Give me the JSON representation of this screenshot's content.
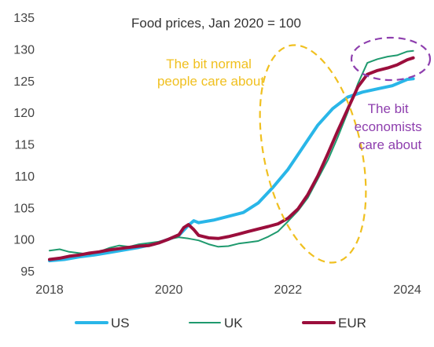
{
  "chart_data": {
    "type": "line",
    "title": "Food prices, Jan 2020 = 100",
    "xlabel": "",
    "ylabel": "",
    "xlim": [
      2018,
      2024.3
    ],
    "ylim": [
      95,
      135
    ],
    "x_ticks": [
      "2018",
      "2020",
      "2022",
      "2024"
    ],
    "y_ticks": [
      "95",
      "100",
      "105",
      "110",
      "115",
      "120",
      "125",
      "130",
      "135"
    ],
    "grid": false,
    "legend_position": "bottom",
    "series": [
      {
        "name": "US",
        "color": "#29B6E8",
        "x": [
          2018.0,
          2018.25,
          2018.5,
          2018.75,
          2019.0,
          2019.25,
          2019.5,
          2019.75,
          2020.0,
          2020.17,
          2020.33,
          2020.42,
          2020.5,
          2020.75,
          2021.0,
          2021.25,
          2021.5,
          2021.75,
          2022.0,
          2022.25,
          2022.5,
          2022.75,
          2023.0,
          2023.25,
          2023.5,
          2023.75,
          2024.0,
          2024.1
        ],
        "values": [
          96.6,
          96.8,
          97.2,
          97.5,
          97.9,
          98.3,
          98.7,
          99.2,
          100.0,
          100.6,
          102.2,
          102.9,
          102.6,
          103.0,
          103.6,
          104.2,
          105.7,
          108.2,
          111.0,
          114.5,
          118.0,
          120.6,
          122.4,
          123.2,
          123.7,
          124.2,
          125.2,
          125.3
        ]
      },
      {
        "name": "UK",
        "color": "#1F9A6E",
        "x": [
          2018.0,
          2018.17,
          2018.33,
          2018.5,
          2018.67,
          2018.83,
          2019.0,
          2019.17,
          2019.33,
          2019.5,
          2019.67,
          2019.83,
          2020.0,
          2020.17,
          2020.33,
          2020.5,
          2020.67,
          2020.83,
          2021.0,
          2021.17,
          2021.33,
          2021.5,
          2021.67,
          2021.83,
          2022.0,
          2022.17,
          2022.33,
          2022.5,
          2022.67,
          2022.83,
          2023.0,
          2023.17,
          2023.33,
          2023.5,
          2023.67,
          2023.83,
          2024.0,
          2024.1
        ],
        "values": [
          98.2,
          98.4,
          98.0,
          97.8,
          97.6,
          98.0,
          98.6,
          99.0,
          98.8,
          99.2,
          99.4,
          99.6,
          100.0,
          100.3,
          100.1,
          99.8,
          99.2,
          98.8,
          98.9,
          99.3,
          99.5,
          99.7,
          100.4,
          101.2,
          102.8,
          104.5,
          106.5,
          109.5,
          112.5,
          116.0,
          120.0,
          124.5,
          127.8,
          128.4,
          128.8,
          129.0,
          129.6,
          129.7
        ]
      },
      {
        "name": "EUR",
        "color": "#9B0E3C",
        "x": [
          2018.0,
          2018.17,
          2018.33,
          2018.5,
          2018.67,
          2018.83,
          2019.0,
          2019.17,
          2019.33,
          2019.5,
          2019.67,
          2019.83,
          2020.0,
          2020.17,
          2020.25,
          2020.33,
          2020.42,
          2020.5,
          2020.67,
          2020.83,
          2021.0,
          2021.17,
          2021.33,
          2021.5,
          2021.67,
          2021.83,
          2022.0,
          2022.17,
          2022.33,
          2022.5,
          2022.67,
          2022.83,
          2023.0,
          2023.17,
          2023.33,
          2023.5,
          2023.67,
          2023.83,
          2024.0,
          2024.1
        ],
        "values": [
          96.8,
          97.0,
          97.3,
          97.5,
          97.8,
          98.0,
          98.3,
          98.5,
          98.7,
          98.9,
          99.0,
          99.4,
          100.0,
          100.7,
          101.8,
          102.3,
          101.5,
          100.6,
          100.2,
          100.1,
          100.4,
          100.8,
          101.2,
          101.6,
          102.0,
          102.4,
          103.3,
          104.8,
          107.0,
          110.0,
          113.5,
          117.0,
          120.5,
          124.0,
          126.0,
          126.6,
          127.0,
          127.5,
          128.3,
          128.6
        ]
      }
    ],
    "annotations": [
      {
        "lines": [
          "The bit normal",
          "people care about"
        ],
        "color": "#F0C020"
      },
      {
        "lines": [
          "The bit",
          "economists",
          "care about"
        ],
        "color": "#8E3FAE"
      }
    ]
  }
}
